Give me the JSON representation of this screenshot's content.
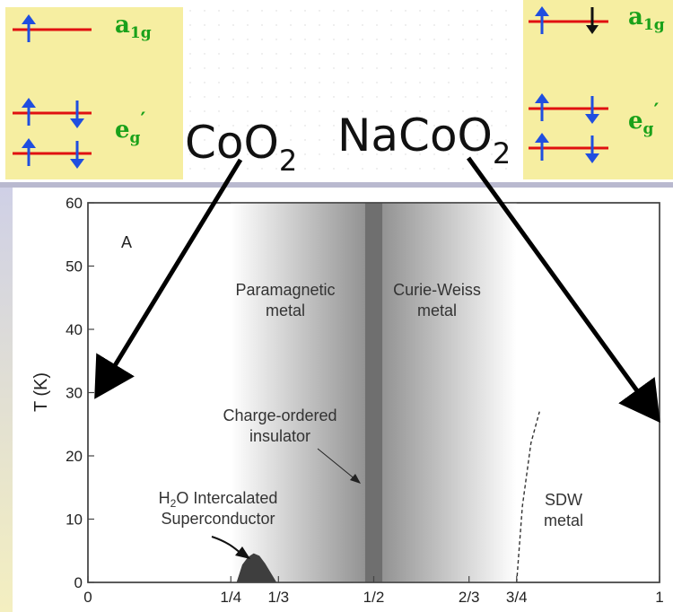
{
  "orbital_panels": {
    "left": {
      "upper_level": "a",
      "upper_sub": "1g",
      "lower_level": "e",
      "lower_sub": "g",
      "lower_prime": "′"
    },
    "right": {
      "upper_level": "a",
      "upper_sub": "1g",
      "lower_level": "e",
      "lower_sub": "g",
      "lower_prime": "′"
    }
  },
  "compounds": {
    "left": {
      "main": "CoO",
      "sub": "2"
    },
    "right": {
      "main": "NaCoO",
      "sub": "2"
    }
  },
  "colors": {
    "panel_bg": "#f6eea1",
    "level_line": "#e01010",
    "spin_up": "#1f4ee0",
    "spin_black": "#111111",
    "level_label": "#1aa11a",
    "region_shade": "#8c8c8c",
    "charge_ordered": "#6f6f6f",
    "dome": "#3e3e3e"
  },
  "chart_data": {
    "type": "phase-diagram",
    "panel_letter": "A",
    "ylabel": "T (K)",
    "ylim": [
      0,
      60
    ],
    "xlim": [
      0,
      1
    ],
    "y_ticks": [
      "0",
      "10",
      "20",
      "30",
      "40",
      "50",
      "60"
    ],
    "x_ticks": [
      {
        "value": 0,
        "label": "0"
      },
      {
        "value": 0.25,
        "label": "1/4"
      },
      {
        "value": 0.3333,
        "label": "1/3"
      },
      {
        "value": 0.5,
        "label": "1/2"
      },
      {
        "value": 0.6667,
        "label": "2/3"
      },
      {
        "value": 0.75,
        "label": "3/4"
      },
      {
        "value": 1,
        "label": "1"
      }
    ],
    "regions": {
      "paramagnetic_metal": {
        "label_lines": [
          "Paramagnetic",
          "metal"
        ],
        "x_range": [
          0.25,
          0.5
        ]
      },
      "curie_weiss_metal": {
        "label_lines": [
          "Curie-Weiss",
          "metal"
        ],
        "x_range": [
          0.5,
          0.75
        ]
      },
      "charge_ordered_insulator": {
        "label_lines": [
          "Charge-ordered",
          "insulator"
        ],
        "x_range": [
          0.485,
          0.515
        ]
      },
      "h2o_superconductor": {
        "label_line1_pre": "H",
        "label_line1_sub": "2",
        "label_line1_post": "O Intercalated",
        "label_line2": "Superconductor",
        "dome": [
          [
            0.26,
            0
          ],
          [
            0.27,
            2.8
          ],
          [
            0.28,
            4
          ],
          [
            0.29,
            4.6
          ],
          [
            0.3,
            4.2
          ],
          [
            0.31,
            3.0
          ],
          [
            0.33,
            0
          ]
        ]
      },
      "sdw_metal": {
        "label_lines": [
          "SDW",
          "metal"
        ],
        "boundary": [
          [
            0.75,
            0
          ],
          [
            0.76,
            12
          ],
          [
            0.775,
            22
          ],
          [
            0.79,
            27
          ]
        ]
      }
    }
  }
}
